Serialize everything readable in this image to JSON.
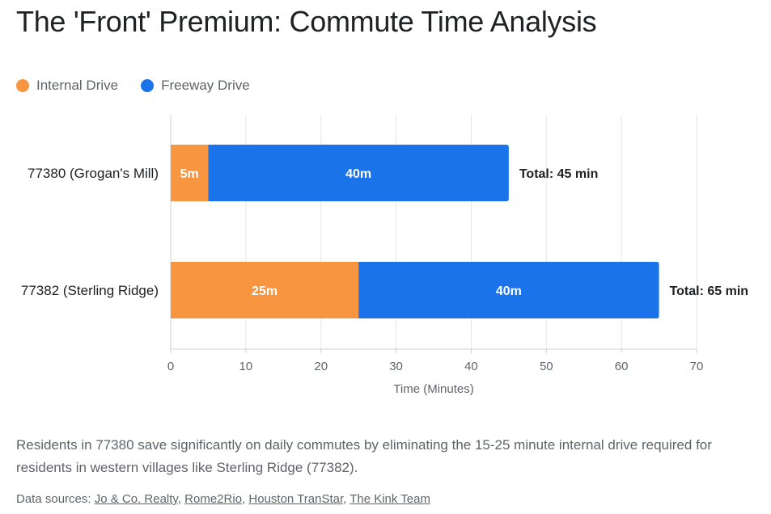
{
  "title": "The 'Front' Premium: Commute Time Analysis",
  "legend": [
    {
      "label": "Internal Drive",
      "color": "#F79540"
    },
    {
      "label": "Freeway Drive",
      "color": "#1A73E8"
    }
  ],
  "chart_data": {
    "type": "bar",
    "orientation": "horizontal",
    "stacked": true,
    "categories": [
      "77380 (Grogan's Mill)",
      "77382 (Sterling Ridge)"
    ],
    "series": [
      {
        "name": "Internal Drive",
        "values": [
          5,
          25
        ],
        "labels": [
          "5m",
          "25m"
        ],
        "color": "#F79540"
      },
      {
        "name": "Freeway Drive",
        "values": [
          40,
          40
        ],
        "labels": [
          "40m",
          "40m"
        ],
        "color": "#1A73E8"
      }
    ],
    "totals": [
      "Total: 45 min",
      "Total: 65 min"
    ],
    "xlabel": "Time (Minutes)",
    "xlim": [
      0,
      70
    ],
    "xticks": [
      0,
      10,
      20,
      30,
      40,
      50,
      60,
      70
    ],
    "grid": true,
    "legend_position": "top-left"
  },
  "description": "Residents in 77380 save significantly on daily commutes by eliminating the 15-25 minute internal drive required for residents in western villages like Sterling Ridge (77382).",
  "sources": {
    "prefix": "Data sources:",
    "links": [
      "Jo & Co. Realty",
      "Rome2Rio",
      "Houston TranStar",
      "The Kink Team"
    ]
  }
}
